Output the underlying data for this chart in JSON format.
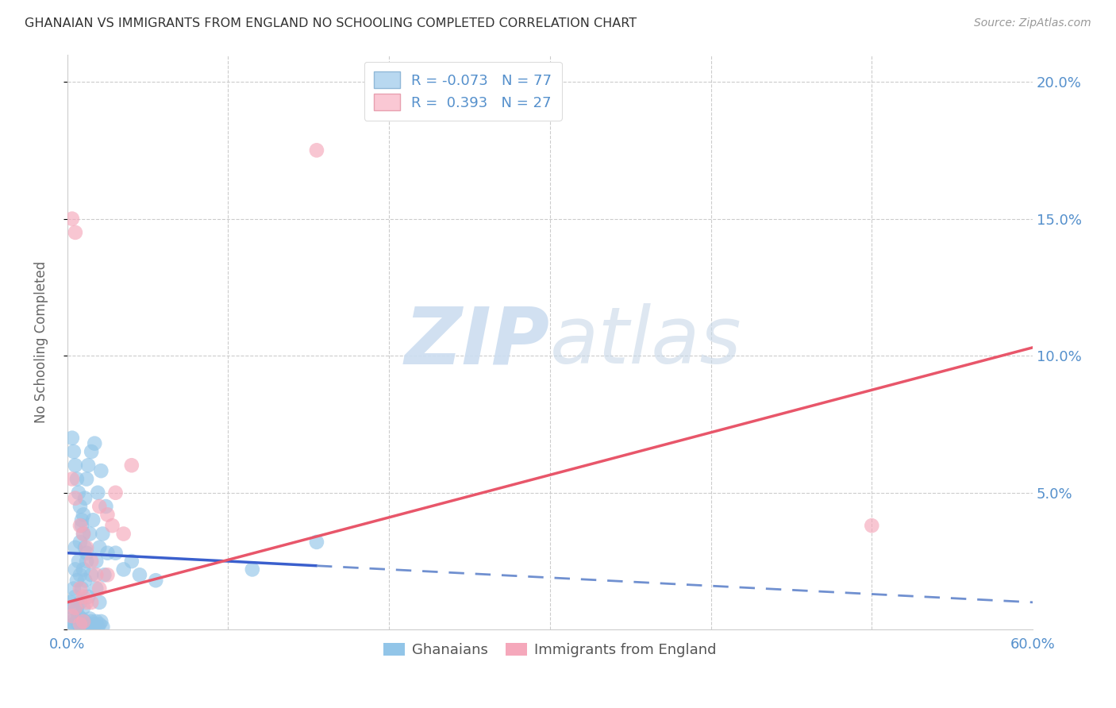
{
  "title": "GHANAIAN VS IMMIGRANTS FROM ENGLAND NO SCHOOLING COMPLETED CORRELATION CHART",
  "source": "Source: ZipAtlas.com",
  "ylabel": "No Schooling Completed",
  "xlim": [
    0.0,
    0.6
  ],
  "ylim": [
    0.0,
    0.21
  ],
  "yticks": [
    0.0,
    0.05,
    0.1,
    0.15,
    0.2
  ],
  "ytick_labels_right": [
    "",
    "5.0%",
    "10.0%",
    "15.0%",
    "20.0%"
  ],
  "xtick_vals": [
    0.0,
    0.1,
    0.2,
    0.3,
    0.4,
    0.5,
    0.6
  ],
  "xtick_labels": [
    "0.0%",
    "",
    "",
    "",
    "",
    "",
    "60.0%"
  ],
  "legend_r_blue": "-0.073",
  "legend_n_blue": "77",
  "legend_r_pink": "0.393",
  "legend_n_pink": "27",
  "blue_color": "#92c5e8",
  "pink_color": "#f5a8bb",
  "blue_line_solid_color": "#3a5fcd",
  "blue_line_dash_color": "#7090d0",
  "pink_line_color": "#e8566a",
  "axis_tick_color": "#5590cc",
  "background_color": "#ffffff",
  "grid_color": "#cccccc",
  "watermark_color": "#ccddf0",
  "blue_line_intercept": 0.028,
  "blue_line_slope": -0.03,
  "pink_line_intercept": 0.01,
  "pink_line_slope": 0.155,
  "ghanaians_x": [
    0.002,
    0.003,
    0.004,
    0.004,
    0.005,
    0.005,
    0.005,
    0.006,
    0.006,
    0.007,
    0.007,
    0.008,
    0.008,
    0.008,
    0.009,
    0.009,
    0.01,
    0.01,
    0.01,
    0.011,
    0.011,
    0.012,
    0.012,
    0.013,
    0.013,
    0.014,
    0.015,
    0.015,
    0.016,
    0.017,
    0.018,
    0.018,
    0.019,
    0.02,
    0.02,
    0.021,
    0.022,
    0.023,
    0.024,
    0.025,
    0.003,
    0.004,
    0.005,
    0.006,
    0.007,
    0.008,
    0.009,
    0.01,
    0.011,
    0.012,
    0.013,
    0.014,
    0.015,
    0.016,
    0.017,
    0.018,
    0.019,
    0.02,
    0.021,
    0.022,
    0.003,
    0.004,
    0.005,
    0.006,
    0.007,
    0.008,
    0.009,
    0.01,
    0.011,
    0.012,
    0.03,
    0.035,
    0.04,
    0.045,
    0.055,
    0.115,
    0.155
  ],
  "ghanaians_y": [
    0.01,
    0.008,
    0.015,
    0.005,
    0.022,
    0.012,
    0.03,
    0.018,
    0.008,
    0.025,
    0.005,
    0.032,
    0.01,
    0.02,
    0.038,
    0.015,
    0.042,
    0.022,
    0.008,
    0.048,
    0.018,
    0.055,
    0.028,
    0.06,
    0.012,
    0.035,
    0.065,
    0.02,
    0.04,
    0.068,
    0.025,
    0.015,
    0.05,
    0.03,
    0.01,
    0.058,
    0.035,
    0.02,
    0.045,
    0.028,
    0.003,
    0.002,
    0.001,
    0.003,
    0.002,
    0.001,
    0.004,
    0.002,
    0.003,
    0.001,
    0.002,
    0.004,
    0.003,
    0.001,
    0.002,
    0.003,
    0.001,
    0.002,
    0.003,
    0.001,
    0.07,
    0.065,
    0.06,
    0.055,
    0.05,
    0.045,
    0.04,
    0.035,
    0.03,
    0.025,
    0.028,
    0.022,
    0.025,
    0.02,
    0.018,
    0.022,
    0.032
  ],
  "england_x": [
    0.003,
    0.005,
    0.008,
    0.01,
    0.012,
    0.015,
    0.018,
    0.02,
    0.025,
    0.028,
    0.03,
    0.035,
    0.04,
    0.003,
    0.005,
    0.008,
    0.01,
    0.012,
    0.003,
    0.005,
    0.008,
    0.01,
    0.015,
    0.02,
    0.025,
    0.5,
    0.155
  ],
  "england_y": [
    0.055,
    0.048,
    0.038,
    0.035,
    0.03,
    0.025,
    0.02,
    0.045,
    0.042,
    0.038,
    0.05,
    0.035,
    0.06,
    0.005,
    0.008,
    0.002,
    0.003,
    0.01,
    0.15,
    0.145,
    0.015,
    0.012,
    0.01,
    0.015,
    0.02,
    0.038,
    0.175
  ]
}
